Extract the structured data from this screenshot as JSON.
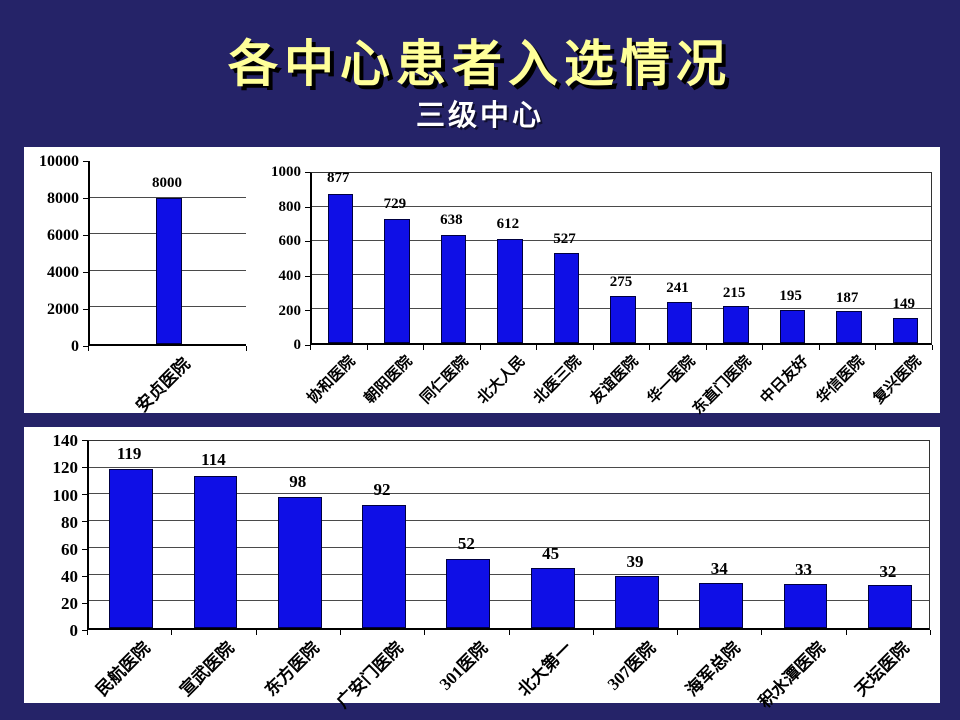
{
  "title": "各中心患者入选情况",
  "subtitle": "三级中心",
  "colors": {
    "background": "#252368",
    "panel": "#ffffff",
    "bar": "#0f0fe6",
    "bar_border": "#000040",
    "title_text": "#ffff99",
    "subtitle_text": "#ffffff",
    "grid": "#4a4a4a",
    "axis_text": "#000000"
  },
  "chart_data": [
    {
      "name": "anzhen-hospital-chart",
      "type": "bar",
      "title": "",
      "xlabel": "",
      "ylabel": "",
      "categories": [
        "安贞医院"
      ],
      "values": [
        8000
      ],
      "ylim": [
        0,
        10000
      ],
      "ytick": 2000,
      "grid": true,
      "data_labels": true,
      "legend": "none"
    },
    {
      "name": "tertiary-centers-top-chart",
      "type": "bar",
      "title": "",
      "xlabel": "",
      "ylabel": "",
      "categories": [
        "协和医院",
        "朝阳医院",
        "同仁医院",
        "北大人民",
        "北医三院",
        "友谊医院",
        "华一医院",
        "东直门医院",
        "中日友好",
        "华信医院",
        "复兴医院"
      ],
      "values": [
        877,
        729,
        638,
        612,
        527,
        275,
        241,
        215,
        195,
        187,
        149
      ],
      "ylim": [
        0,
        1000
      ],
      "ytick": 200,
      "grid": true,
      "data_labels": true,
      "legend": "none"
    },
    {
      "name": "tertiary-centers-bottom-chart",
      "type": "bar",
      "title": "",
      "xlabel": "",
      "ylabel": "",
      "categories": [
        "民航医院",
        "宣武医院",
        "东方医院",
        "广安门医院",
        "301医院",
        "北大第一",
        "307医院",
        "海军总院",
        "积水潭医院",
        "天坛医院"
      ],
      "values": [
        119,
        114,
        98,
        92,
        52,
        45,
        39,
        34,
        33,
        32
      ],
      "ylim": [
        0,
        140
      ],
      "ytick": 20,
      "grid": true,
      "data_labels": true,
      "legend": "none"
    }
  ]
}
